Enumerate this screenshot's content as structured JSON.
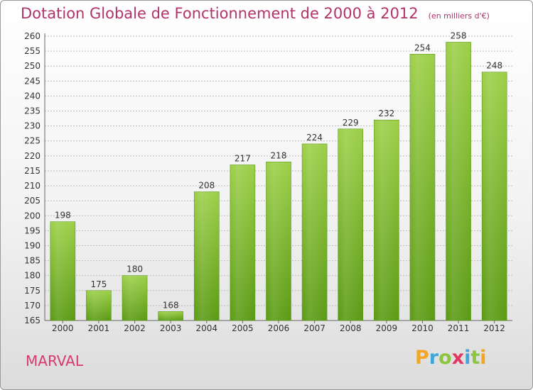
{
  "header": {
    "title": "Dotation Globale de Fonctionnement de 2000 à 2012",
    "unit": "(en milliers d'€)"
  },
  "footer": {
    "commune": "MARVAL",
    "brand": "Proxiti"
  },
  "colors": {
    "bar_top": "#9ccf48",
    "bar_bottom": "#5a9a13",
    "title": "#b0336a",
    "grid": "#bcbcbc"
  },
  "chart_data": {
    "type": "bar",
    "title": "Dotation Globale de Fonctionnement de 2000 à 2012",
    "subtitle": "(en milliers d'€)",
    "xlabel": "",
    "ylabel": "",
    "categories": [
      "2000",
      "2001",
      "2002",
      "2003",
      "2004",
      "2005",
      "2006",
      "2007",
      "2008",
      "2009",
      "2010",
      "2011",
      "2012"
    ],
    "values": [
      198,
      175,
      180,
      168,
      208,
      217,
      218,
      224,
      229,
      232,
      254,
      258,
      248
    ],
    "ylim": [
      165,
      260
    ],
    "yticks": [
      165,
      170,
      175,
      180,
      185,
      190,
      195,
      200,
      205,
      210,
      215,
      220,
      225,
      230,
      235,
      240,
      245,
      250,
      255,
      260
    ],
    "grid": "horizontal",
    "legend": "none",
    "data_labels": true
  }
}
